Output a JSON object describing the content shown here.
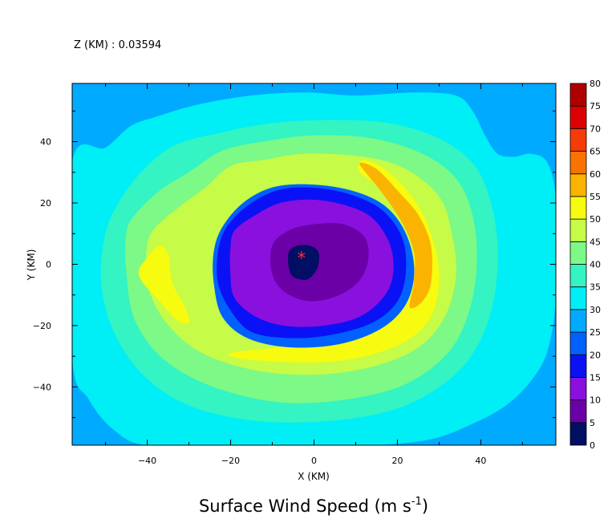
{
  "chart_data": {
    "type": "contour",
    "title": "Surface Wind Speed",
    "title_unit": "m s",
    "title_unit_exponent": "-1",
    "header": "Z (KM) : 0.03594",
    "xlabel": "X (KM)",
    "ylabel": "Y (KM)",
    "xlim": [
      -58,
      58
    ],
    "ylim": [
      -59,
      59
    ],
    "x_ticks": [
      -40,
      -20,
      0,
      20,
      40
    ],
    "y_ticks": [
      -40,
      -20,
      0,
      20,
      40
    ],
    "grid": false,
    "center_marker": {
      "x": -3,
      "y": 3,
      "symbol": "*",
      "color": "#ff2a2a"
    },
    "colorbar": {
      "position": "right",
      "levels": [
        0,
        5,
        10,
        15,
        20,
        25,
        30,
        35,
        40,
        45,
        50,
        55,
        60,
        65,
        70,
        75,
        80
      ],
      "colors": [
        "#000e63",
        "#6a00a6",
        "#8a10de",
        "#0a12f5",
        "#0061ff",
        "#00aaff",
        "#00eef6",
        "#33f4c2",
        "#7cf987",
        "#c6fb47",
        "#f7fb10",
        "#f9b300",
        "#f77400",
        "#f53b08",
        "#dd0000",
        "#af0000"
      ]
    },
    "contour_bands": [
      {
        "range": [
          25,
          30
        ],
        "points": [
          [
            -58,
            59
          ],
          [
            58,
            59
          ],
          [
            58,
            -59
          ],
          [
            -58,
            -59
          ]
        ]
      },
      {
        "range": [
          30,
          35
        ],
        "points": [
          [
            -58,
            33
          ],
          [
            -50,
            38
          ],
          [
            -44,
            45
          ],
          [
            -38,
            48
          ],
          [
            -28,
            52
          ],
          [
            -15,
            55
          ],
          [
            -2,
            56
          ],
          [
            10,
            55
          ],
          [
            24,
            56
          ],
          [
            34,
            55
          ],
          [
            38,
            50
          ],
          [
            41,
            42
          ],
          [
            44,
            36
          ],
          [
            48,
            35
          ],
          [
            52,
            36
          ],
          [
            56,
            33
          ],
          [
            58,
            20
          ],
          [
            58,
            -10
          ],
          [
            56,
            -28
          ],
          [
            52,
            -38
          ],
          [
            46,
            -46
          ],
          [
            38,
            -52
          ],
          [
            28,
            -57
          ],
          [
            14,
            -59
          ],
          [
            -2,
            -59
          ],
          [
            -20,
            -59
          ],
          [
            -40,
            -59
          ],
          [
            -48,
            -54
          ],
          [
            -54,
            -44
          ],
          [
            -58,
            -30
          ]
        ]
      },
      {
        "range": [
          35,
          40
        ],
        "points": [
          [
            -46,
            22
          ],
          [
            -40,
            32
          ],
          [
            -33,
            39
          ],
          [
            -22,
            43
          ],
          [
            -10,
            46
          ],
          [
            4,
            47
          ],
          [
            18,
            46
          ],
          [
            30,
            41
          ],
          [
            38,
            33
          ],
          [
            42,
            22
          ],
          [
            44,
            6
          ],
          [
            43,
            -12
          ],
          [
            39,
            -27
          ],
          [
            32,
            -38
          ],
          [
            20,
            -47
          ],
          [
            4,
            -51
          ],
          [
            -14,
            -51
          ],
          [
            -30,
            -46
          ],
          [
            -41,
            -36
          ],
          [
            -48,
            -22
          ],
          [
            -51,
            -6
          ],
          [
            -50,
            10
          ]
        ]
      },
      {
        "range": [
          40,
          45
        ],
        "points": [
          [
            -43,
            16
          ],
          [
            -37,
            24
          ],
          [
            -30,
            30
          ],
          [
            -22,
            37
          ],
          [
            -12,
            40
          ],
          [
            0,
            42
          ],
          [
            14,
            41
          ],
          [
            26,
            36
          ],
          [
            34,
            28
          ],
          [
            38,
            16
          ],
          [
            39,
            0
          ],
          [
            37,
            -16
          ],
          [
            32,
            -29
          ],
          [
            22,
            -39
          ],
          [
            8,
            -44
          ],
          [
            -8,
            -45
          ],
          [
            -24,
            -40
          ],
          [
            -36,
            -31
          ],
          [
            -43,
            -18
          ],
          [
            -45,
            -2
          ],
          [
            -45,
            10
          ]
        ]
      },
      {
        "range": [
          45,
          50
        ],
        "points": [
          [
            -38,
            12
          ],
          [
            -32,
            19
          ],
          [
            -26,
            25
          ],
          [
            -20,
            32
          ],
          [
            -12,
            34
          ],
          [
            -2,
            36
          ],
          [
            12,
            35
          ],
          [
            22,
            31
          ],
          [
            30,
            22
          ],
          [
            33,
            10
          ],
          [
            34,
            -4
          ],
          [
            31,
            -18
          ],
          [
            24,
            -28
          ],
          [
            12,
            -34
          ],
          [
            -2,
            -36
          ],
          [
            -16,
            -34
          ],
          [
            -28,
            -28
          ],
          [
            -36,
            -18
          ],
          [
            -40,
            -6
          ],
          [
            -40,
            6
          ]
        ]
      },
      {
        "range": [
          50,
          55
        ],
        "points": [
          [
            12,
            34
          ],
          [
            18,
            30
          ],
          [
            24,
            21
          ],
          [
            28,
            10
          ],
          [
            30,
            -4
          ],
          [
            28,
            -17
          ],
          [
            22,
            -25
          ],
          [
            12,
            -30
          ],
          [
            0,
            -32
          ],
          [
            -16,
            -31
          ],
          [
            -20,
            -29
          ],
          [
            -8,
            -27
          ],
          [
            6,
            -24
          ],
          [
            16,
            -19
          ],
          [
            22,
            -10
          ],
          [
            24,
            2
          ],
          [
            22,
            14
          ],
          [
            17,
            24
          ],
          [
            11,
            30
          ]
        ]
      },
      {
        "range": [
          50,
          55
        ],
        "points": [
          [
            -42,
            -2
          ],
          [
            -40,
            2
          ],
          [
            -37,
            6
          ],
          [
            -35,
            3
          ],
          [
            -34,
            -6
          ],
          [
            -31,
            -14
          ],
          [
            -30,
            -19
          ],
          [
            -33,
            -18
          ],
          [
            -37,
            -12
          ],
          [
            -41,
            -6
          ]
        ]
      },
      {
        "range": [
          55,
          60
        ],
        "points": [
          [
            11,
            33
          ],
          [
            15,
            31
          ],
          [
            20,
            24
          ],
          [
            25,
            16
          ],
          [
            28,
            6
          ],
          [
            28,
            -6
          ],
          [
            26,
            -12
          ],
          [
            23,
            -14
          ],
          [
            24,
            -6
          ],
          [
            24,
            4
          ],
          [
            21,
            14
          ],
          [
            16,
            24
          ],
          [
            13,
            29
          ]
        ]
      },
      {
        "range": [
          20,
          25
        ],
        "points": [
          [
            -22,
            12
          ],
          [
            -17,
            20
          ],
          [
            -10,
            25
          ],
          [
            -1,
            26
          ],
          [
            9,
            24
          ],
          [
            17,
            19
          ],
          [
            22,
            10
          ],
          [
            24,
            -2
          ],
          [
            22,
            -13
          ],
          [
            16,
            -21
          ],
          [
            6,
            -26
          ],
          [
            -6,
            -27
          ],
          [
            -16,
            -24
          ],
          [
            -22,
            -17
          ],
          [
            -24,
            -6
          ],
          [
            -24,
            4
          ]
        ]
      },
      {
        "range": [
          15,
          20
        ],
        "points": [
          [
            -21,
            12
          ],
          [
            -16,
            19
          ],
          [
            -9,
            24
          ],
          [
            -1,
            25
          ],
          [
            8,
            23
          ],
          [
            16,
            18
          ],
          [
            21,
            9
          ],
          [
            22,
            -2
          ],
          [
            20,
            -12
          ],
          [
            14,
            -19
          ],
          [
            4,
            -23
          ],
          [
            -6,
            -24
          ],
          [
            -15,
            -22
          ],
          [
            -20,
            -15
          ],
          [
            -23,
            -6
          ],
          [
            -23,
            4
          ]
        ]
      },
      {
        "range": [
          10,
          15
        ],
        "points": [
          [
            -19,
            11
          ],
          [
            -14,
            16
          ],
          [
            -8,
            20
          ],
          [
            0,
            21
          ],
          [
            8,
            19
          ],
          [
            14,
            15
          ],
          [
            18,
            7
          ],
          [
            19,
            -2
          ],
          [
            17,
            -10
          ],
          [
            11,
            -17
          ],
          [
            2,
            -20
          ],
          [
            -7,
            -20
          ],
          [
            -14,
            -17
          ],
          [
            -19,
            -11
          ],
          [
            -20,
            -3
          ],
          [
            -20,
            5
          ]
        ]
      },
      {
        "range": [
          5,
          10
        ],
        "points": [
          [
            -10,
            6
          ],
          [
            -6,
            11
          ],
          [
            0,
            13
          ],
          [
            7,
            13
          ],
          [
            12,
            9
          ],
          [
            13,
            2
          ],
          [
            11,
            -5
          ],
          [
            6,
            -10
          ],
          [
            -1,
            -12
          ],
          [
            -7,
            -9
          ],
          [
            -10,
            -3
          ]
        ]
      },
      {
        "range": [
          0,
          5
        ],
        "points": [
          [
            -6,
            4
          ],
          [
            -4,
            6
          ],
          [
            -1,
            6
          ],
          [
            1,
            4
          ],
          [
            1,
            0
          ],
          [
            0,
            -3
          ],
          [
            -2,
            -5
          ],
          [
            -5,
            -4
          ],
          [
            -6,
            -1
          ]
        ]
      }
    ]
  }
}
